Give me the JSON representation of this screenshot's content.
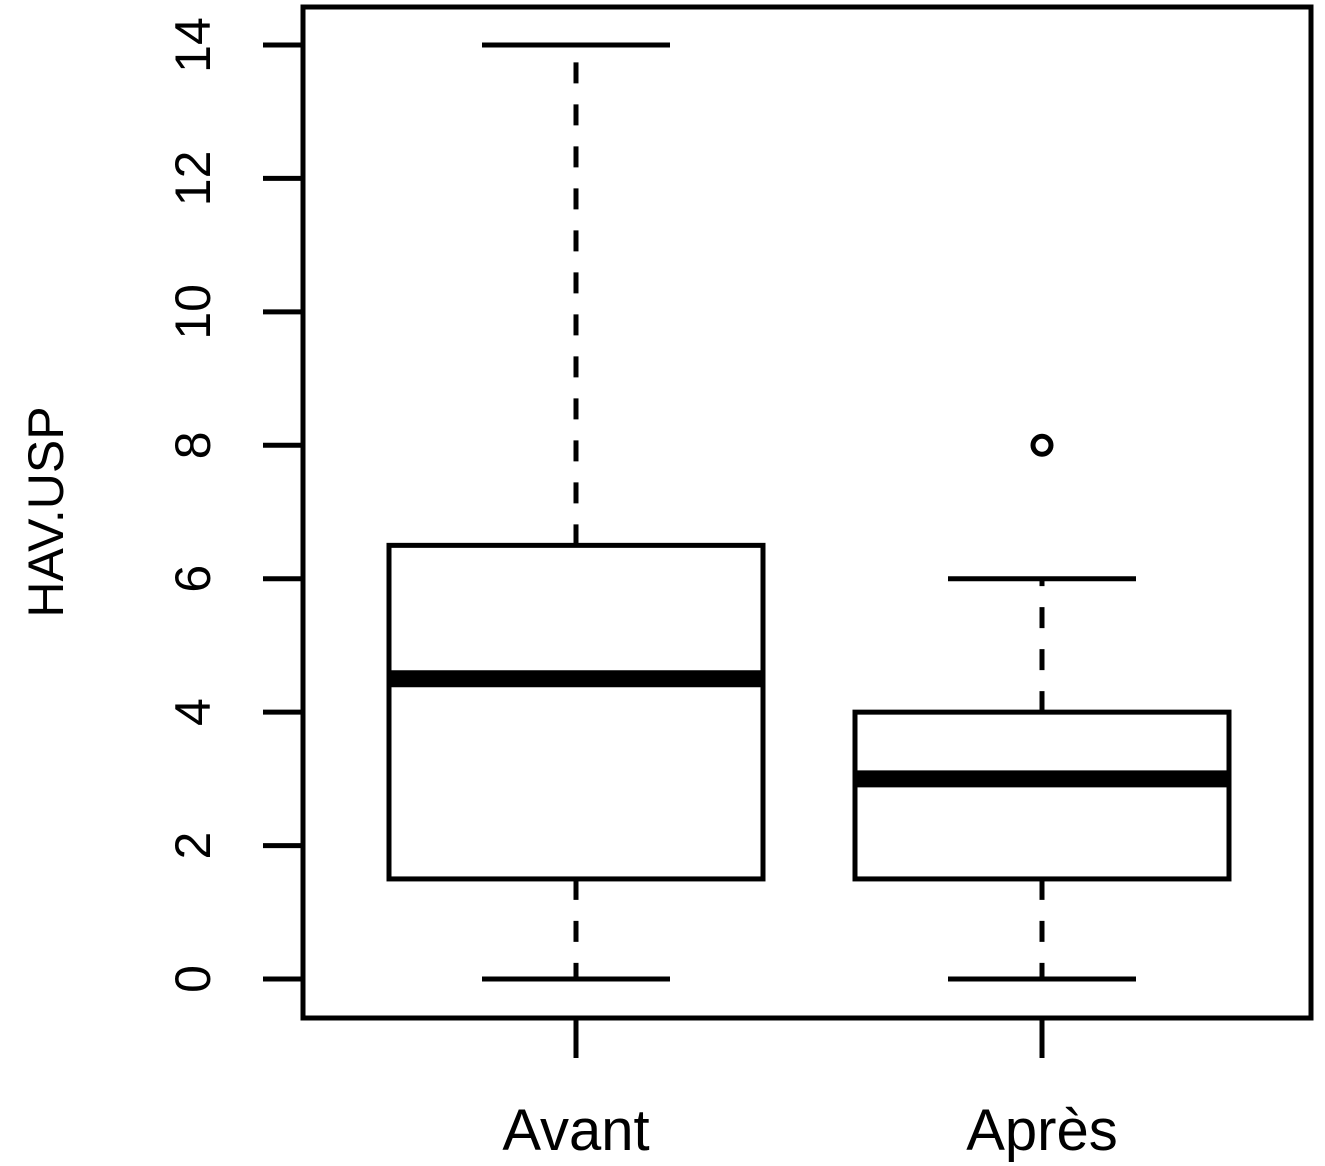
{
  "chart_data": {
    "type": "boxplot",
    "ylabel": "HAV.USP",
    "xlabel": "",
    "ylim": [
      -0.6,
      14.6
    ],
    "yticks": [
      0,
      2,
      4,
      6,
      8,
      10,
      12,
      14
    ],
    "ytick_labels": [
      "0",
      "2",
      "4",
      "6",
      "8",
      "10",
      "12",
      "14"
    ],
    "categories": [
      "Avant",
      "Après"
    ],
    "boxes": [
      {
        "label": "Avant",
        "whisker_low": 0,
        "q1": 1.5,
        "median": 4.5,
        "q3": 6.5,
        "whisker_high": 14,
        "outliers": []
      },
      {
        "label": "Après",
        "whisker_low": 0,
        "q1": 1.5,
        "median": 3,
        "q3": 4,
        "whisker_high": 6,
        "outliers": [
          8
        ]
      }
    ],
    "grid": false,
    "colors": {
      "stroke": "#000000",
      "fill": "#ffffff"
    }
  }
}
